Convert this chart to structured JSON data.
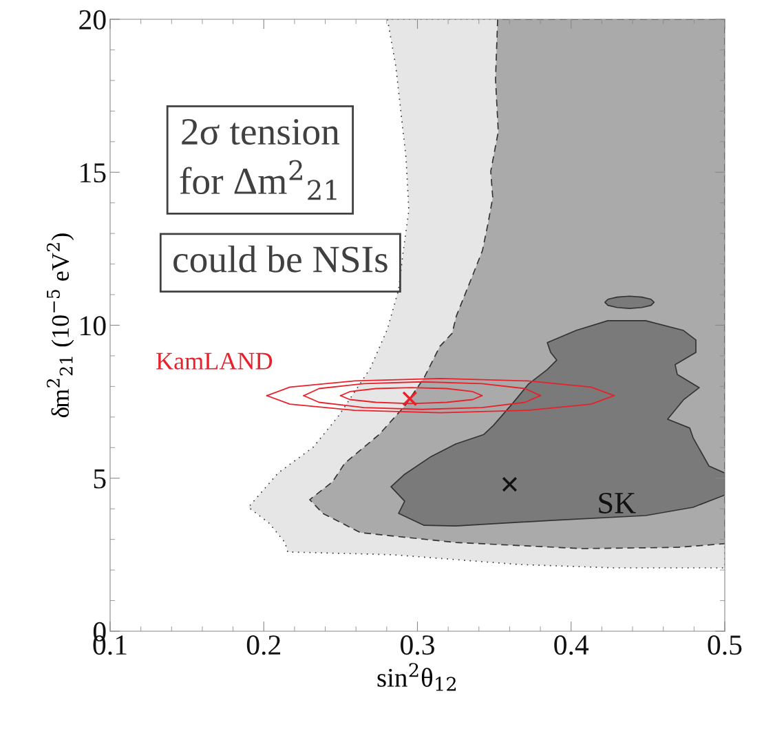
{
  "chart_data": {
    "type": "area",
    "xlabel": "sin$^{2}$θ$_{12}$",
    "ylabel": "δm$^{2}$$_{21}$ (10$^{−5}$ eV$^{2}$)",
    "xlim": [
      0.1,
      0.5
    ],
    "ylim": [
      0,
      20
    ],
    "xticks": [
      0.1,
      0.2,
      0.3,
      0.4,
      0.5
    ],
    "yticks": [
      0,
      5,
      10,
      15,
      20
    ],
    "grid": false,
    "series": [
      {
        "color": "#e6e6e6",
        "line_style": "dotted",
        "x": [
          0.2805,
          0.2859,
          0.2926,
          0.2944,
          0.2908,
          0.2877,
          0.2805,
          0.2693,
          0.2487,
          0.2321,
          0.2093,
          0.19,
          0.2035,
          0.2138,
          0.2156,
          0.2837,
          0.3661,
          0.4279,
          0.5,
          0.5
        ],
        "values": [
          20,
          18.47,
          15.46,
          13.75,
          12.44,
          11.16,
          9.88,
          8.59,
          7.04,
          6.01,
          5.17,
          4.05,
          3.53,
          2.9,
          2.59,
          2.5,
          2.18,
          2.07,
          2.07,
          20
        ]
      },
      {
        "color": "#aaaaaa",
        "line_style": "dashed",
        "x": [
          0.3522,
          0.3508,
          0.3526,
          0.3477,
          0.349,
          0.3459,
          0.3423,
          0.3356,
          0.3253,
          0.3226,
          0.3146,
          0.3043,
          0.2917,
          0.2751,
          0.2527,
          0.2447,
          0.2299,
          0.2384,
          0.263,
          0.3249,
          0.4073,
          0.4691,
          0.5,
          0.5
        ],
        "values": [
          20,
          18.04,
          16.33,
          15.03,
          14.17,
          13.32,
          12.44,
          11.59,
          10.3,
          9.74,
          9.31,
          8.28,
          7.36,
          6.43,
          5.49,
          4.88,
          4.3,
          3.85,
          3.22,
          2.9,
          2.7,
          2.74,
          2.86,
          20
        ]
      },
      {
        "color": "#7a7a7a",
        "line_style": "solid",
        "x": [
          0.2828,
          0.2917,
          0.2877,
          0.3043,
          0.3249,
          0.3867,
          0.4485,
          0.4794,
          0.5,
          0.5,
          0.4897,
          0.4794,
          0.4772,
          0.4628,
          0.4731,
          0.4834,
          0.4691,
          0.4677,
          0.4812,
          0.4812,
          0.4731,
          0.4485,
          0.4239,
          0.4033,
          0.3845,
          0.3867,
          0.3907,
          0.3845,
          0.3723,
          0.362,
          0.3495,
          0.3432,
          0.3249,
          0.3083,
          0.2917
        ],
        "values": [
          4.72,
          4.25,
          3.85,
          3.46,
          3.44,
          3.62,
          3.78,
          4.05,
          4.45,
          5.17,
          5.4,
          6.32,
          6.64,
          6.93,
          7.56,
          7.96,
          8.39,
          8.71,
          9.11,
          9.52,
          9.83,
          10.15,
          10.15,
          9.83,
          9.43,
          9.11,
          8.86,
          8.55,
          8.08,
          7.45,
          6.73,
          6.43,
          6.12,
          5.69,
          5.13
        ]
      },
      {
        "color": "#7a7a7a",
        "line_style": "solid",
        "x": [
          0.454,
          0.452,
          0.446,
          0.438,
          0.43,
          0.424,
          0.422,
          0.424,
          0.43,
          0.438,
          0.446,
          0.452
        ],
        "values": [
          10.75,
          10.85,
          10.92,
          10.95,
          10.92,
          10.85,
          10.75,
          10.65,
          10.58,
          10.55,
          10.58,
          10.65
        ]
      },
      {
        "type": "line",
        "name": "KamLAND",
        "color": "#e8212a",
        "line_style": "solid",
        "x": [
          0.202,
          0.217,
          0.259,
          0.315,
          0.372,
          0.413,
          0.428
        ],
        "values": [
          7.7,
          7.98,
          8.18,
          8.26,
          8.18,
          7.98,
          7.7
        ]
      },
      {
        "type": "line",
        "color": "#e8212a",
        "line_style": "solid",
        "x": [
          0.202,
          0.217,
          0.259,
          0.315,
          0.372,
          0.413,
          0.428
        ],
        "values": [
          7.7,
          7.42,
          7.22,
          7.14,
          7.22,
          7.42,
          7.7
        ]
      },
      {
        "type": "line",
        "color": "#e8212a",
        "line_style": "solid",
        "x": [
          0.226,
          0.236,
          0.265,
          0.303,
          0.342,
          0.37,
          0.38
        ],
        "values": [
          7.7,
          7.93,
          8.09,
          8.15,
          8.09,
          7.93,
          7.7
        ]
      },
      {
        "type": "line",
        "color": "#e8212a",
        "line_style": "solid",
        "x": [
          0.226,
          0.236,
          0.265,
          0.303,
          0.342,
          0.37,
          0.38
        ],
        "values": [
          7.7,
          7.48,
          7.31,
          7.25,
          7.31,
          7.48,
          7.7
        ]
      },
      {
        "type": "line",
        "color": "#e8212a",
        "line_style": "solid",
        "x": [
          0.25,
          0.256,
          0.273,
          0.296,
          0.319,
          0.336,
          0.342
        ],
        "values": [
          7.7,
          7.83,
          7.93,
          7.96,
          7.93,
          7.83,
          7.7
        ]
      },
      {
        "type": "line",
        "color": "#e8212a",
        "line_style": "solid",
        "x": [
          0.25,
          0.256,
          0.273,
          0.296,
          0.319,
          0.336,
          0.342
        ],
        "values": [
          7.7,
          7.57,
          7.48,
          7.44,
          7.48,
          7.57,
          7.7
        ]
      },
      {
        "type": "scatter",
        "color": "#e8212a",
        "marker": "cross",
        "x": [
          0.295
        ],
        "values": [
          7.6
        ]
      },
      {
        "type": "scatter",
        "color": "#111111",
        "marker": "cross",
        "x": [
          0.36
        ],
        "values": [
          4.8
        ]
      }
    ],
    "annotations": [
      "2σ tension\nfor Δm$^{2}$$_{21}$",
      "could be NSIs",
      "SK"
    ]
  }
}
